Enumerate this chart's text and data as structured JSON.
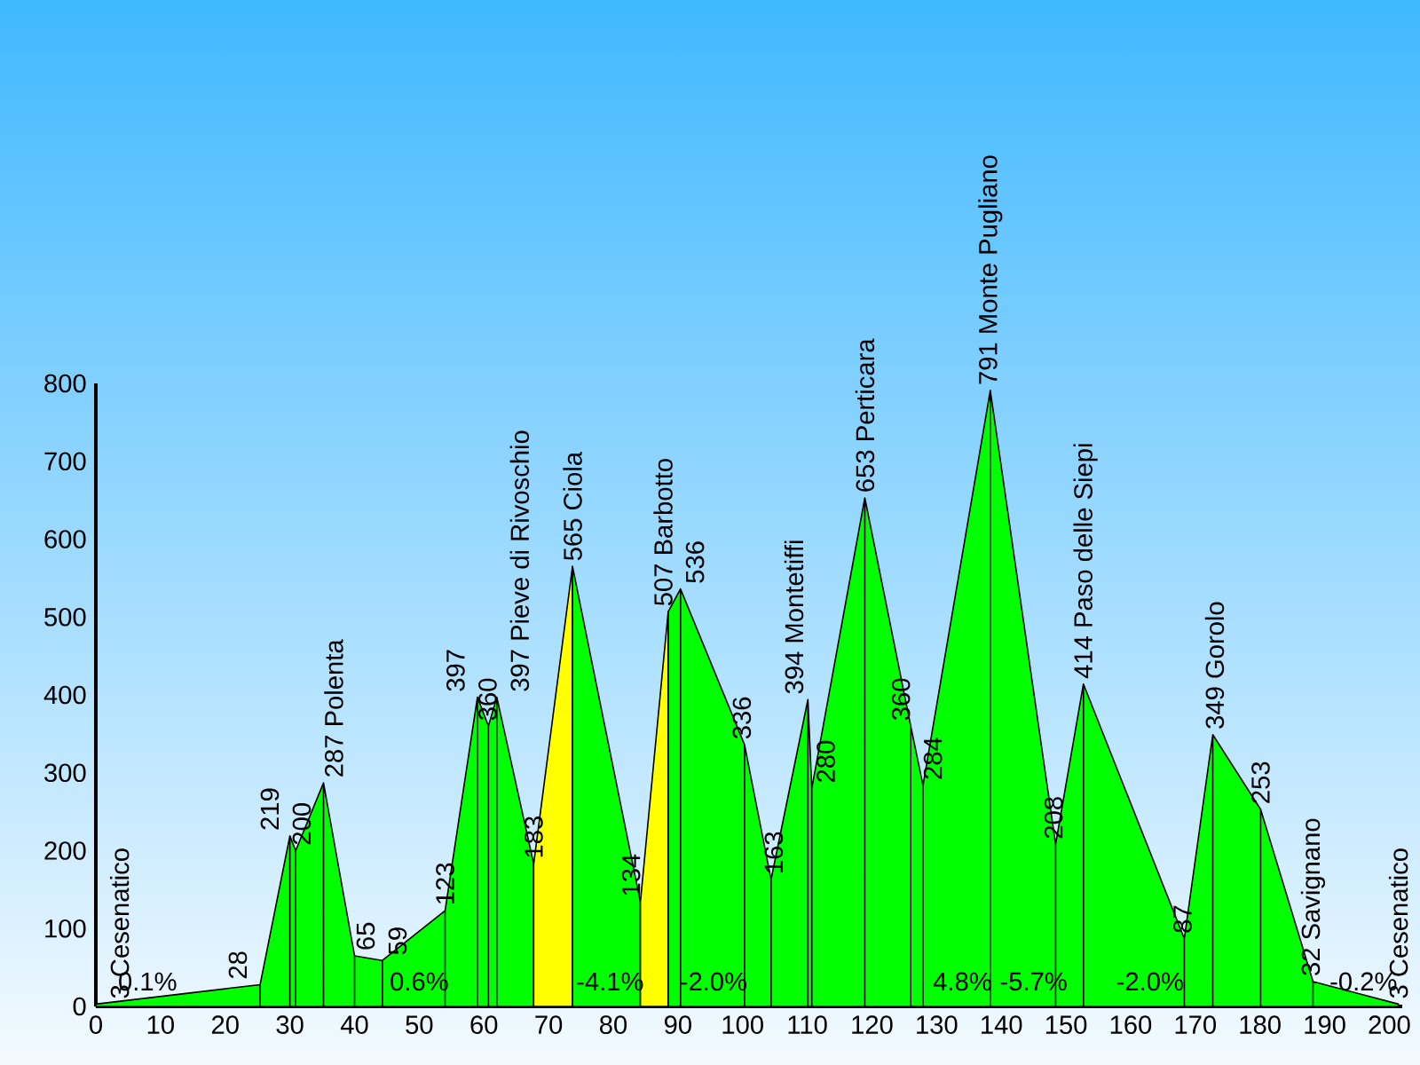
{
  "chart_data": {
    "type": "area",
    "xlim": [
      0,
      202
    ],
    "ylim": [
      0,
      800
    ],
    "xticks": [
      0,
      10,
      20,
      30,
      40,
      50,
      60,
      70,
      80,
      90,
      100,
      110,
      120,
      130,
      140,
      150,
      160,
      170,
      180,
      190,
      200
    ],
    "yticks": [
      0,
      100,
      200,
      300,
      400,
      500,
      600,
      700,
      800
    ],
    "marker": "none",
    "series": [
      {
        "color": "#00ff00",
        "x": [
          0,
          25.4,
          30.0,
          30.9,
          35.2,
          40.0,
          44.3,
          54.0,
          59.0,
          60.7,
          62.0,
          67.7
        ],
        "values": [
          3,
          28,
          219,
          200,
          287,
          65,
          59,
          123,
          397,
          360,
          397,
          183
        ],
        "value_labels": [
          "3 Cesenatico",
          "28",
          "219",
          "200",
          "287 Polenta",
          "65",
          "59",
          "123",
          "397",
          "360",
          "397 Pieve di Rivoschio",
          "183"
        ]
      },
      {
        "color": "#ffff00",
        "x": [
          67.7,
          73.7
        ],
        "values": [
          183,
          565
        ],
        "value_labels": [
          null,
          "565 Ciola"
        ]
      },
      {
        "color": "#00ff00",
        "x": [
          73.7,
          84.2
        ],
        "values": [
          565,
          134
        ],
        "value_labels": [
          null,
          "134"
        ]
      },
      {
        "color": "#ffff00",
        "x": [
          84.2,
          88.5
        ],
        "values": [
          134,
          507
        ],
        "value_labels": [
          null,
          "507 Barbotto"
        ]
      },
      {
        "color": "#00ff00",
        "x": [
          88.5,
          90.4,
          100.3,
          104.4,
          110.1,
          110.7,
          118.9,
          126.0,
          127.9,
          138.3,
          148.4,
          152.7,
          168.3,
          172.7,
          180.1,
          188.2,
          201.4
        ],
        "values": [
          507,
          536,
          336,
          163,
          394,
          280,
          653,
          360,
          284,
          791,
          208,
          414,
          87,
          349,
          253,
          32,
          3
        ],
        "value_labels": [
          null,
          "536",
          "336",
          "163",
          "394 Montetiffi",
          "280",
          "653 Perticara",
          "360",
          "284",
          "791 Monte Pugliano",
          "208",
          "414 Paso delle Siepi",
          "87",
          "349 Gorolo",
          "253",
          "32 Savignano",
          "3 Cesenatico"
        ]
      }
    ],
    "annotations": [
      "0.1%",
      "0.6%",
      "-4.1%",
      "-2.0%",
      "4.8%",
      "-5.7%",
      "-2.0%",
      "-0.2%"
    ]
  }
}
